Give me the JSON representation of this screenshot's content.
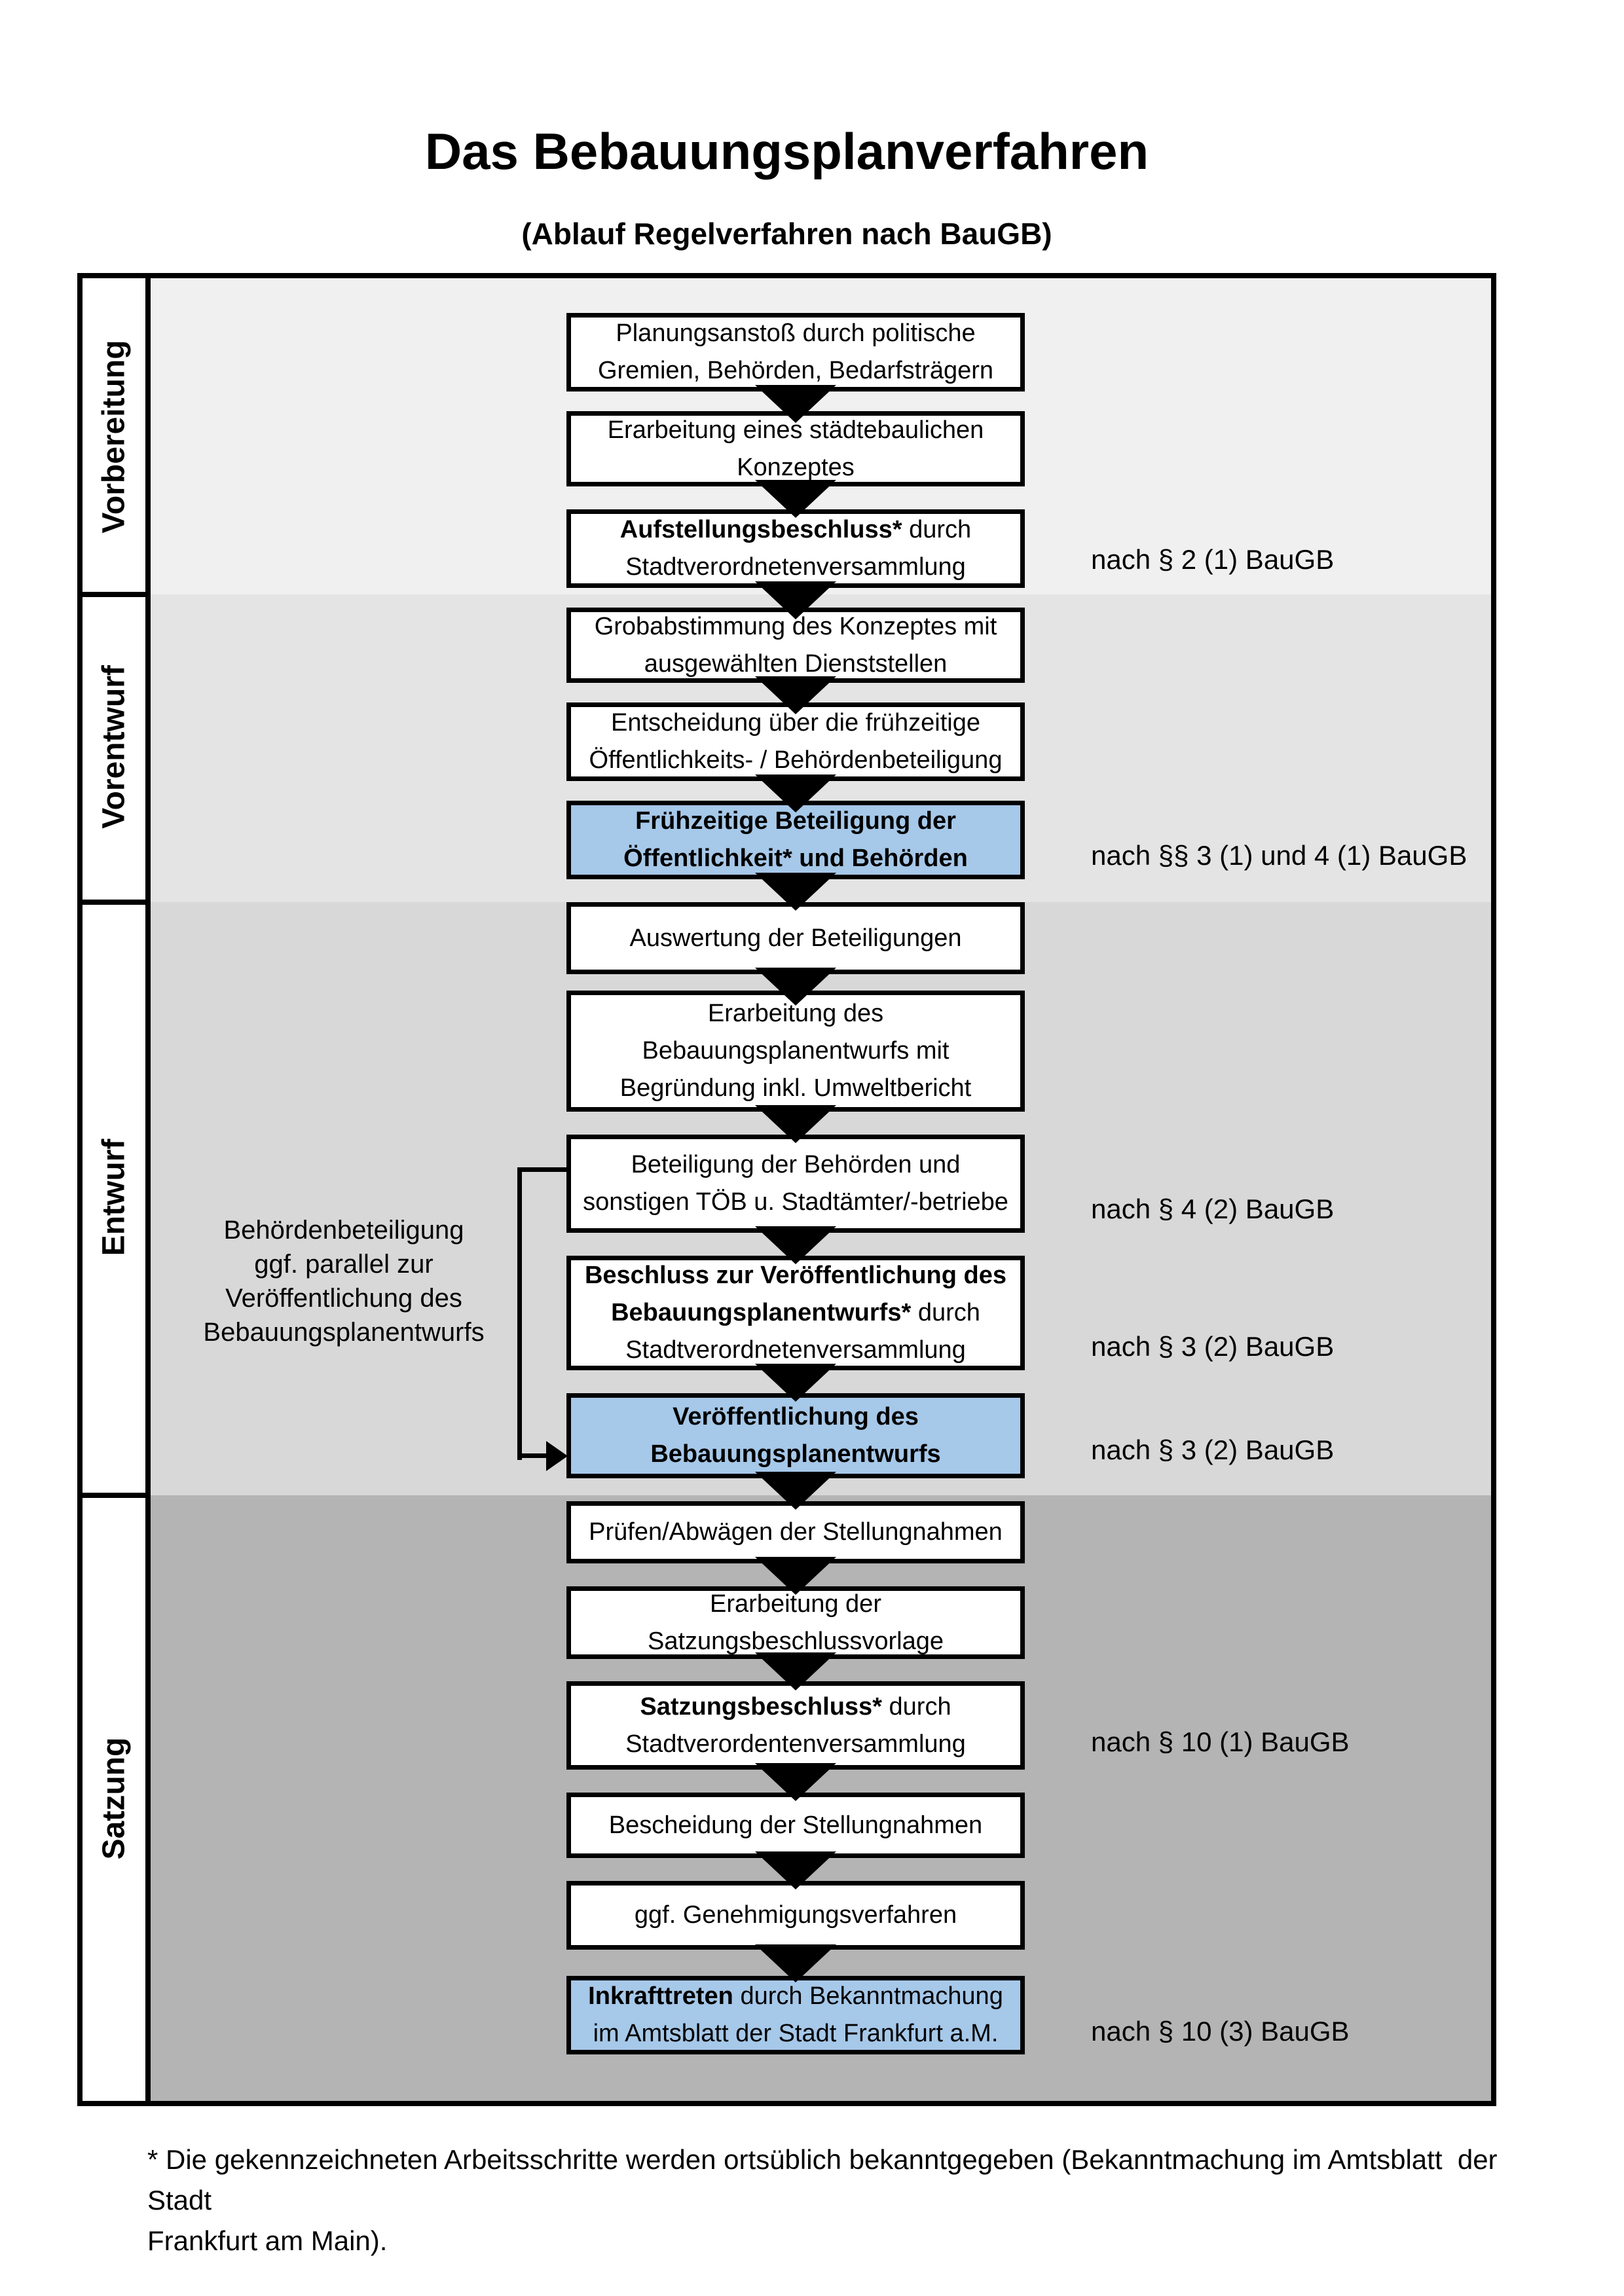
{
  "title": "Das Bebauungsplanverfahren",
  "subtitle": "(Ablauf Regelverfahren nach BauGB)",
  "colors": {
    "highlight_box": "#a6c8e9",
    "phase_bands": [
      "#f0f0f0",
      "#e4e4e4",
      "#d8d8d8",
      "#b4b4b4"
    ],
    "border": "#000000"
  },
  "phases": [
    {
      "label": "Vorbereitung"
    },
    {
      "label": "Vorentwurf"
    },
    {
      "label": "Entwurf"
    },
    {
      "label": "Satzung"
    }
  ],
  "steps": [
    {
      "highlight": false,
      "lines": [
        [
          {
            "t": "Planungsanstoß durch politische"
          }
        ],
        [
          {
            "t": "Gremien, Behörden, Bedarfsträgern"
          }
        ]
      ]
    },
    {
      "highlight": false,
      "lines": [
        [
          {
            "t": "Erarbeitung eines städtebaulichen"
          }
        ],
        [
          {
            "t": "Konzeptes"
          }
        ]
      ]
    },
    {
      "highlight": false,
      "lines": [
        [
          {
            "t": "Aufstellungsbeschluss*",
            "b": true
          },
          {
            "t": " durch"
          }
        ],
        [
          {
            "t": "Stadtverordnetenversammlung"
          }
        ]
      ]
    },
    {
      "highlight": false,
      "lines": [
        [
          {
            "t": "Grobabstimmung des Konzeptes mit"
          }
        ],
        [
          {
            "t": "ausgewählten Dienststellen"
          }
        ]
      ]
    },
    {
      "highlight": false,
      "lines": [
        [
          {
            "t": "Entscheidung über die frühzeitige"
          }
        ],
        [
          {
            "t": "Öffentlichkeits- / Behördenbeteiligung"
          }
        ]
      ]
    },
    {
      "highlight": true,
      "lines": [
        [
          {
            "t": "Frühzeitige Beteiligung der",
            "b": true
          }
        ],
        [
          {
            "t": "Öffentlichkeit* und Behörden",
            "b": true
          }
        ]
      ]
    },
    {
      "highlight": false,
      "lines": [
        [
          {
            "t": "Auswertung der Beteiligungen"
          }
        ]
      ]
    },
    {
      "highlight": false,
      "lines": [
        [
          {
            "t": "Erarbeitung des"
          }
        ],
        [
          {
            "t": "Bebauungsplanentwurfs mit"
          }
        ],
        [
          {
            "t": "Begründung inkl. Umweltbericht"
          }
        ]
      ]
    },
    {
      "highlight": false,
      "lines": [
        [
          {
            "t": "Beteiligung der Behörden und"
          }
        ],
        [
          {
            "t": "sonstigen TÖB u. Stadtämter/-betriebe"
          }
        ]
      ]
    },
    {
      "highlight": false,
      "lines": [
        [
          {
            "t": "Beschluss zur Veröffentlichung des",
            "b": true
          }
        ],
        [
          {
            "t": "Bebauungsplanentwurfs*",
            "b": true
          },
          {
            "t": " durch"
          }
        ],
        [
          {
            "t": "Stadtverordnetenversammlung"
          }
        ]
      ]
    },
    {
      "highlight": true,
      "lines": [
        [
          {
            "t": "Veröffentlichung des",
            "b": true
          }
        ],
        [
          {
            "t": "Bebauungsplanentwurfs",
            "b": true
          }
        ]
      ]
    },
    {
      "highlight": false,
      "lines": [
        [
          {
            "t": "Prüfen/Abwägen der Stellungnahmen"
          }
        ]
      ]
    },
    {
      "highlight": false,
      "lines": [
        [
          {
            "t": "Erarbeitung der"
          }
        ],
        [
          {
            "t": "Satzungsbeschlussvorlage"
          }
        ]
      ]
    },
    {
      "highlight": false,
      "lines": [
        [
          {
            "t": "Satzungsbeschluss*",
            "b": true
          },
          {
            "t": " durch"
          }
        ],
        [
          {
            "t": "Stadtverordentenversammlung"
          }
        ]
      ]
    },
    {
      "highlight": false,
      "lines": [
        [
          {
            "t": "Bescheidung der Stellungnahmen"
          }
        ]
      ]
    },
    {
      "highlight": false,
      "lines": [
        [
          {
            "t": "ggf. Genehmigungsverfahren"
          }
        ]
      ]
    },
    {
      "highlight": true,
      "lines": [
        [
          {
            "t": "Inkrafttreten",
            "b": true
          },
          {
            "t": " durch Bekanntmachung"
          }
        ],
        [
          {
            "t": "im Amtsblatt der Stadt Frankfurt a.M."
          }
        ]
      ]
    }
  ],
  "refs": [
    {
      "text": "nach § 2 (1) BauGB"
    },
    {
      "text": "nach §§ 3 (1) und 4 (1) BauGB"
    },
    {
      "text": "nach § 4 (2) BauGB"
    },
    {
      "text": "nach § 3 (2) BauGB"
    },
    {
      "text": "nach § 3 (2) BauGB"
    },
    {
      "text": "nach § 10 (1) BauGB"
    },
    {
      "text": "nach § 10 (3) BauGB"
    }
  ],
  "side_note": {
    "lines": [
      "Behördenbeteiligung",
      "ggf. parallel zur",
      "Veröffentlichung des",
      "Bebauungsplanentwurfs"
    ]
  },
  "footnote": {
    "lines": [
      "* Die gekennzeichneten Arbeitsschritte werden ortsüblich bekanntgegeben (Bekanntmachung im Amtsblatt  der Stadt",
      "Frankfurt am Main)."
    ]
  }
}
